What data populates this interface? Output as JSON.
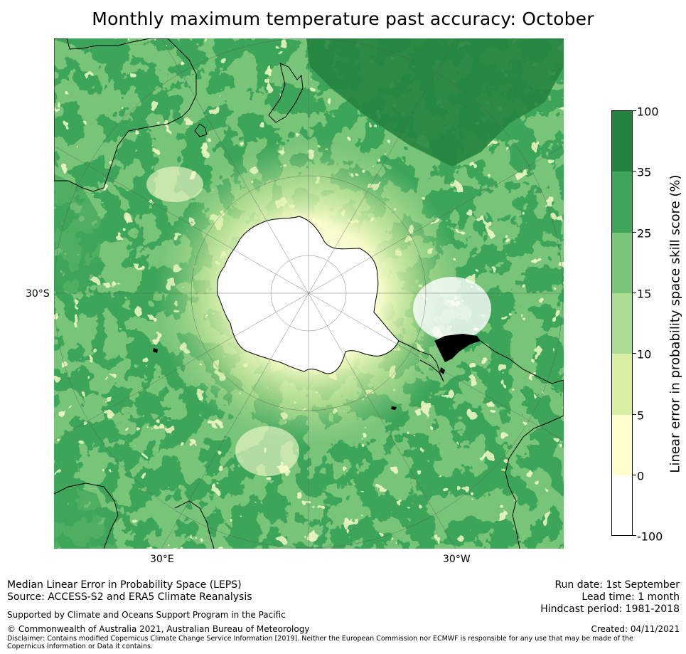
{
  "title": "Monthly maximum temperature past accuracy: October",
  "map": {
    "projection": "south-polar-stereographic",
    "lat_label": "30°S",
    "lon_labels": [
      "30°E",
      "30°W"
    ]
  },
  "colorbar": {
    "label": "Linear error in probability space skill score (%)",
    "ticks": [
      "100",
      "35",
      "25",
      "15",
      "10",
      "5",
      "0",
      "-100"
    ],
    "colors": [
      "#23843f",
      "#3ea55a",
      "#78c479",
      "#acdb94",
      "#d9efa4",
      "#ffffce",
      "#ffffff"
    ]
  },
  "footer": {
    "left": [
      "Median Linear Error in Probability Space (LEPS)",
      "Source: ACCESS-S2 and ERA5 Climate Reanalysis"
    ],
    "right": [
      "Run date: 1st September",
      "Lead time: 1 month",
      "Hindcast period: 1981-2018"
    ],
    "support": "Supported by Climate and Oceans Support Program in the Pacific",
    "copyright": "© Commonwealth of Australia 2021, Australian Bureau of Meteorology",
    "created": "Created: 04/11/2021",
    "disclaimer": "Disclaimer: Contains modified Copernicus Climate Change Service Information [2019]. Neither the European Commission nor ECMWF is responsible for any use that may be made of the Copernicus Information or Data it contains."
  }
}
